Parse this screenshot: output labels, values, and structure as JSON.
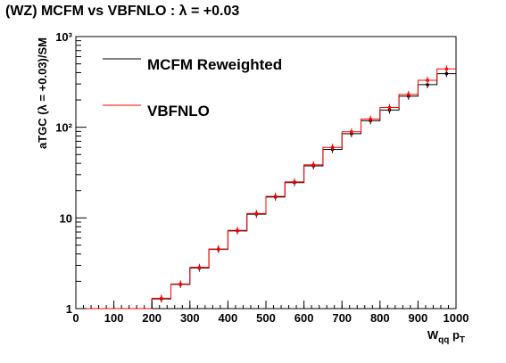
{
  "chart_data": {
    "type": "line",
    "title": "(WZ) MCFM vs VBFNLO : λ = +0.03",
    "ylabel": "aTGC (λ = +0.03)/SM",
    "xlabel_main": "W",
    "xlabel_sub": "qq",
    "xlabel_tail": " p",
    "xlabel_tail_sub": "T",
    "xlim": [
      0,
      1000
    ],
    "ylim": [
      1,
      1000
    ],
    "yscale": "log",
    "grid": false,
    "legend_position": "top-left",
    "x_ticks": [
      "0",
      "100",
      "200",
      "300",
      "400",
      "500",
      "600",
      "700",
      "800",
      "900",
      "1000"
    ],
    "y_ticks": [
      "1",
      "10",
      "10²",
      "10³"
    ],
    "bin_edges": [
      0,
      50,
      100,
      150,
      200,
      250,
      300,
      350,
      400,
      450,
      500,
      550,
      600,
      650,
      700,
      750,
      800,
      850,
      900,
      950,
      1000
    ],
    "series": [
      {
        "name": "MCFM Reweighted",
        "color": "#000000",
        "values": [
          1,
          1,
          1,
          1,
          1.28,
          1.85,
          2.8,
          4.5,
          7.2,
          11.0,
          17.0,
          24.5,
          37.5,
          57.0,
          85.0,
          118.0,
          155.0,
          220.0,
          295.0,
          390.0
        ]
      },
      {
        "name": "VBFNLO",
        "color": "#ff0000",
        "values": [
          1,
          1,
          1,
          1,
          1.3,
          1.87,
          2.85,
          4.55,
          7.3,
          11.2,
          17.3,
          25.0,
          38.5,
          60.0,
          89.0,
          123.0,
          165.0,
          230.0,
          330.0,
          440.0
        ]
      }
    ]
  }
}
